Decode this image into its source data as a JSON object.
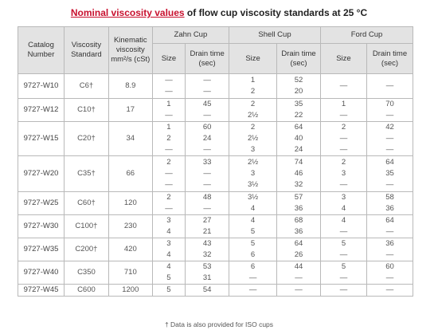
{
  "title": {
    "link_text": "Nominal viscosity values",
    "rest": " of flow cup viscosity standards at 25 °C"
  },
  "headers": {
    "catalog": "Catalog Number",
    "viscosity_standard": "Viscosity Standard",
    "kinematic": "Kinematic viscosity mm²/s (cSt)",
    "zahn": "Zahn Cup",
    "shell": "Shell Cup",
    "ford": "Ford Cup",
    "size": "Size",
    "drain": "Drain time (sec)"
  },
  "rows": [
    {
      "cat": "9727-W10",
      "std": "C6†",
      "kin": "8.9",
      "zs": [
        "—",
        "—"
      ],
      "zd": [
        "—",
        "—"
      ],
      "ss": [
        "1",
        "2"
      ],
      "sd": [
        "52",
        "20"
      ],
      "fs": [
        "—"
      ],
      "fd": [
        "—"
      ]
    },
    {
      "cat": "9727-W12",
      "std": "C10†",
      "kin": "17",
      "zs": [
        "1",
        "—"
      ],
      "zd": [
        "45",
        "—"
      ],
      "ss": [
        "2",
        "2½"
      ],
      "sd": [
        "35",
        "22"
      ],
      "fs": [
        "1",
        "—"
      ],
      "fd": [
        "70",
        "—"
      ]
    },
    {
      "cat": "9727-W15",
      "std": "C20†",
      "kin": "34",
      "zs": [
        "1",
        "2",
        "—"
      ],
      "zd": [
        "60",
        "24",
        "—"
      ],
      "ss": [
        "2",
        "2½",
        "3"
      ],
      "sd": [
        "64",
        "40",
        "24"
      ],
      "fs": [
        "2",
        "—",
        "—"
      ],
      "fd": [
        "42",
        "—",
        "—"
      ]
    },
    {
      "cat": "9727-W20",
      "std": "C35†",
      "kin": "66",
      "zs": [
        "2",
        "—",
        "—"
      ],
      "zd": [
        "33",
        "—",
        "—"
      ],
      "ss": [
        "2½",
        "3",
        "3½"
      ],
      "sd": [
        "74",
        "46",
        "32"
      ],
      "fs": [
        "2",
        "3",
        "—"
      ],
      "fd": [
        "64",
        "35",
        "—"
      ]
    },
    {
      "cat": "9727-W25",
      "std": "C60†",
      "kin": "120",
      "zs": [
        "2",
        "—"
      ],
      "zd": [
        "48",
        "—"
      ],
      "ss": [
        "3½",
        "4"
      ],
      "sd": [
        "57",
        "36"
      ],
      "fs": [
        "3",
        "4"
      ],
      "fd": [
        "58",
        "36"
      ]
    },
    {
      "cat": "9727-W30",
      "std": "C100†",
      "kin": "230",
      "zs": [
        "3",
        "4"
      ],
      "zd": [
        "27",
        "21"
      ],
      "ss": [
        "4",
        "5"
      ],
      "sd": [
        "68",
        "36"
      ],
      "fs": [
        "4",
        "—"
      ],
      "fd": [
        "64",
        "—"
      ]
    },
    {
      "cat": "9727-W35",
      "std": "C200†",
      "kin": "420",
      "zs": [
        "3",
        "4"
      ],
      "zd": [
        "43",
        "32"
      ],
      "ss": [
        "5",
        "6"
      ],
      "sd": [
        "64",
        "26"
      ],
      "fs": [
        "5",
        "—"
      ],
      "fd": [
        "36",
        "—"
      ]
    },
    {
      "cat": "9727-W40",
      "std": "C350",
      "kin": "710",
      "zs": [
        "4",
        "5"
      ],
      "zd": [
        "53",
        "31"
      ],
      "ss": [
        "6",
        "—"
      ],
      "sd": [
        "44",
        "—"
      ],
      "fs": [
        "5",
        "—"
      ],
      "fd": [
        "60",
        "—"
      ]
    },
    {
      "cat": "9727-W45",
      "std": "C600",
      "kin": "1200",
      "zs": [
        "5"
      ],
      "zd": [
        "54"
      ],
      "ss": [
        "—"
      ],
      "sd": [
        "—"
      ],
      "fs": [
        "—"
      ],
      "fd": [
        "—"
      ]
    }
  ],
  "footnote": "† Data is also provided for ISO cups"
}
